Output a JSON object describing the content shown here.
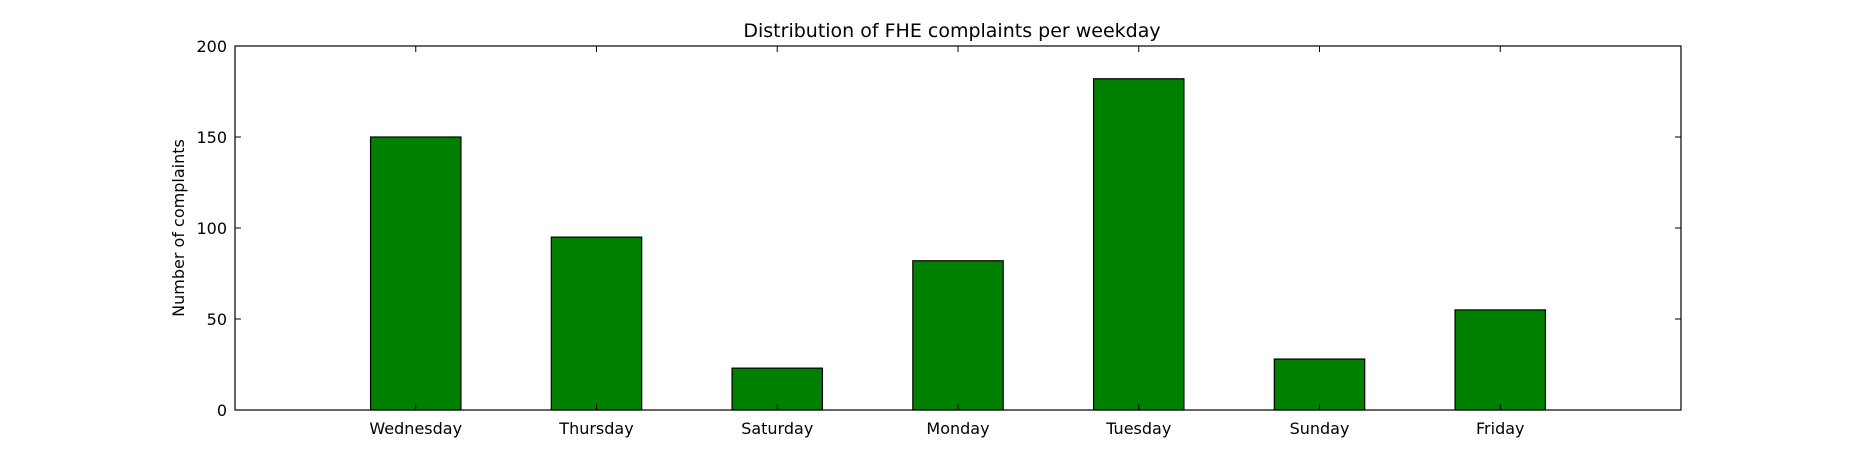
{
  "chart_data": {
    "type": "bar",
    "title": "Distribution of  FHE complaints per weekday",
    "xlabel": "",
    "ylabel": "Number of complaints",
    "categories": [
      "Wednesday",
      "Thursday",
      "Saturday",
      "Monday",
      "Tuesday",
      "Sunday",
      "Friday"
    ],
    "values": [
      150,
      95,
      23,
      82,
      182,
      28,
      55
    ],
    "ylim": [
      0,
      200
    ],
    "yticks": [
      0,
      50,
      100,
      150,
      200
    ],
    "grid": false,
    "legend": "none",
    "bar_color": "#008000",
    "edge_color": "#000000"
  }
}
